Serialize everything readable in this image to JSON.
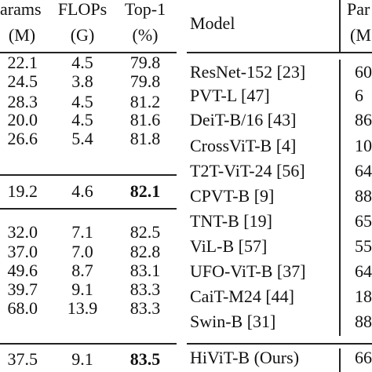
{
  "left_table": {
    "header": [
      [
        "arams",
        "FLOPs",
        "Top-1"
      ],
      [
        "(M)",
        "(G)",
        "(%)"
      ]
    ],
    "rows": [
      [
        "22.1",
        "4.5",
        "79.8"
      ],
      [
        "24.5",
        "3.8",
        "79.8"
      ],
      [
        "28.3",
        "4.5",
        "81.2"
      ],
      [
        "20.0",
        "4.5",
        "81.6"
      ],
      [
        "26.6",
        "5.4",
        "81.8"
      ],
      [
        "19.2",
        "4.6",
        "82.1"
      ],
      [
        "32.0",
        "7.1",
        "82.5"
      ],
      [
        "37.0",
        "7.0",
        "82.8"
      ],
      [
        "49.6",
        "8.7",
        "83.1"
      ],
      [
        "39.7",
        "9.1",
        "83.3"
      ],
      [
        "68.0",
        "13.9",
        "83.3"
      ],
      [
        "37.5",
        "9.1",
        "83.5"
      ]
    ]
  },
  "right_table": {
    "header": [
      [
        "Model",
        "Par"
      ],
      [
        "",
        "(M"
      ]
    ],
    "rows": [
      [
        "ResNet-152 [23]",
        "60"
      ],
      [
        "PVT-L [47]",
        "6"
      ],
      [
        "DeiT-B/16 [43]",
        "86"
      ],
      [
        "CrossViT-B [4]",
        "10"
      ],
      [
        "T2T-ViT-24 [56]",
        "64"
      ],
      [
        "CPVT-B [9]",
        "88"
      ],
      [
        "TNT-B [19]",
        "65"
      ],
      [
        "ViL-B [57]",
        "55"
      ],
      [
        "UFO-ViT-B [37]",
        "64"
      ],
      [
        "CaiT-M24 [44]",
        "18"
      ],
      [
        "Swin-B [31]",
        "88"
      ],
      [
        "HiViT-B (Ours)",
        "66"
      ]
    ]
  }
}
